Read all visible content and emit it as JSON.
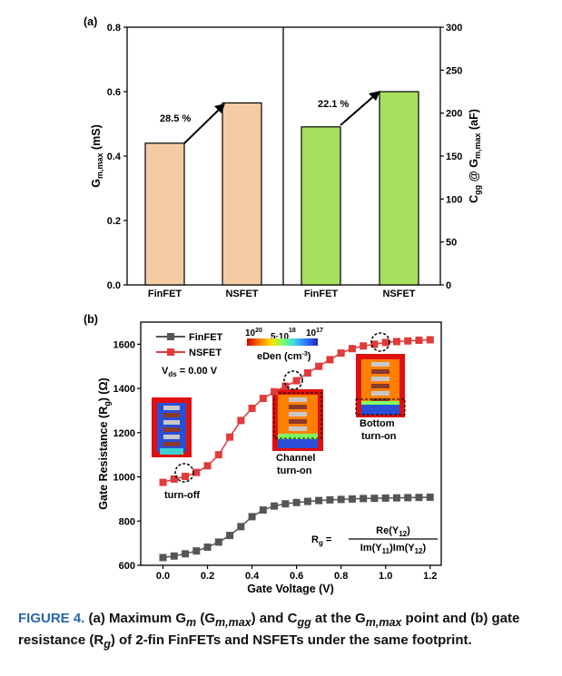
{
  "chart_data": [
    {
      "panel": "(a)",
      "type": "bar",
      "categories": [
        "FinFET",
        "NSFET",
        "FinFET",
        "NSFET"
      ],
      "gm_series": [
        {
          "category": "FinFET",
          "value": 0.44,
          "color": "#f3cca4"
        },
        {
          "category": "NSFET",
          "value": 0.565,
          "color": "#f3cca4"
        }
      ],
      "cgg_series": [
        {
          "category": "FinFET",
          "value": 184,
          "color": "#a6e05c"
        },
        {
          "category": "NSFET",
          "value": 225,
          "color": "#a6e05c"
        }
      ],
      "annotations": [
        "28.5 %",
        "22.1 %"
      ],
      "ylabel_left": "G_m,max (mS)",
      "ylabel_right": "C_gg @ G_m,max (aF)",
      "ylim_left": [
        0.0,
        0.8
      ],
      "ylim_right": [
        0,
        300
      ],
      "yticks_left": [
        "0.0",
        "0.2",
        "0.4",
        "0.6",
        "0.8"
      ],
      "yticks_right": [
        "0",
        "50",
        "100",
        "150",
        "200",
        "250",
        "300"
      ]
    },
    {
      "panel": "(b)",
      "type": "line",
      "xlabel": "Gate Voltage (V)",
      "ylabel": "Gate Resistance (R_g) (Ω)",
      "xlim": [
        -0.1,
        1.25
      ],
      "ylim": [
        600,
        1700
      ],
      "xticks": [
        "0.0",
        "0.2",
        "0.4",
        "0.6",
        "0.8",
        "1.0",
        "1.2"
      ],
      "yticks": [
        "600",
        "800",
        "1000",
        "1200",
        "1400",
        "1600"
      ],
      "x": [
        0.0,
        0.05,
        0.1,
        0.15,
        0.2,
        0.25,
        0.3,
        0.35,
        0.4,
        0.45,
        0.5,
        0.55,
        0.6,
        0.65,
        0.7,
        0.75,
        0.8,
        0.85,
        0.9,
        0.95,
        1.0,
        1.05,
        1.1,
        1.15,
        1.2
      ],
      "series": [
        {
          "name": "FinFET",
          "color": "#555555",
          "values": [
            635,
            642,
            652,
            665,
            682,
            705,
            735,
            775,
            820,
            850,
            868,
            878,
            884,
            889,
            893,
            896,
            898,
            900,
            902,
            903,
            904,
            905,
            906,
            907,
            908
          ]
        },
        {
          "name": "NSFET",
          "color": "#e03a3a",
          "values": [
            975,
            990,
            1002,
            1020,
            1050,
            1100,
            1180,
            1255,
            1310,
            1355,
            1385,
            1410,
            1435,
            1470,
            1500,
            1530,
            1560,
            1580,
            1592,
            1600,
            1608,
            1612,
            1615,
            1618,
            1620
          ]
        }
      ],
      "annotations": {
        "vds": "V_ds = 0.00 V",
        "turn_off": "turn-off",
        "channel_turn_on": [
          "Channel",
          "turn-on"
        ],
        "bottom_turn_on": [
          "Bottom",
          "turn-on"
        ],
        "colorbar_ticks": [
          "10^20",
          "5·10^18",
          "10^17"
        ],
        "colorbar_label": "eDen (cm^-3)",
        "formula_lhs": "R_g =",
        "formula_num": "Re(Y_12)",
        "formula_den": "Im(Y_11)Im(Y_12)"
      },
      "colors": {
        "colorbar": [
          "#d40000",
          "#ff7a00",
          "#ffe000",
          "#80ff60",
          "#40e0e0",
          "#3080ff",
          "#2020c0"
        ]
      }
    }
  ],
  "caption": {
    "label": "FIGURE 4.",
    "text": "(a) Maximum G_m (G_m,max) and C_gg at the G_m,max point and (b) gate resistance (R_g) of 2-fin FinFETs and NSFETs under the same footprint."
  }
}
